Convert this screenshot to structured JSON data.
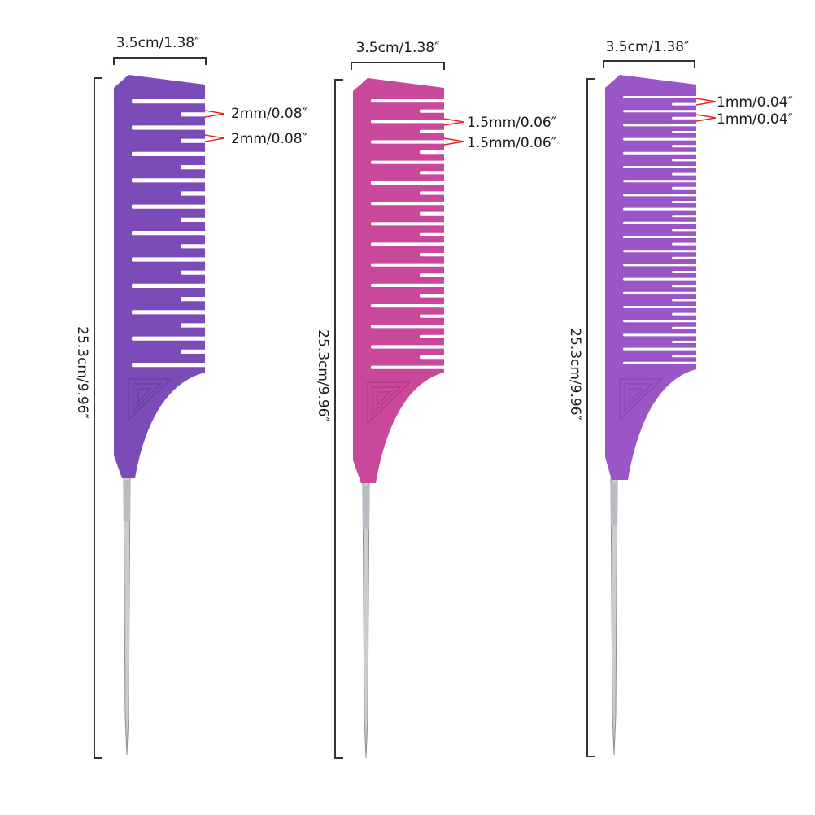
{
  "colors": {
    "background": "#ffffff",
    "comb1": "#7b4bb8",
    "comb2": "#c9489b",
    "comb3": "#9a56c7",
    "pin": "#c9ccd1",
    "marker": "#e0262a",
    "text": "#1a1a1a"
  },
  "combs": [
    {
      "width_label": "3.5cm/1.38″",
      "length_label": "25.3cm/9.96″",
      "spacing_labels": [
        "2mm/0.08″",
        "2mm/0.08″"
      ]
    },
    {
      "width_label": "3.5cm/1.38″",
      "length_label": "25.3cm/9.96″",
      "spacing_labels": [
        "1.5mm/0.06″",
        "1.5mm/0.06″"
      ]
    },
    {
      "width_label": "3.5cm/1.38″",
      "length_label": "25.3cm/9.96″",
      "spacing_labels": [
        "1mm/0.04″",
        "1mm/0.04″"
      ]
    }
  ]
}
